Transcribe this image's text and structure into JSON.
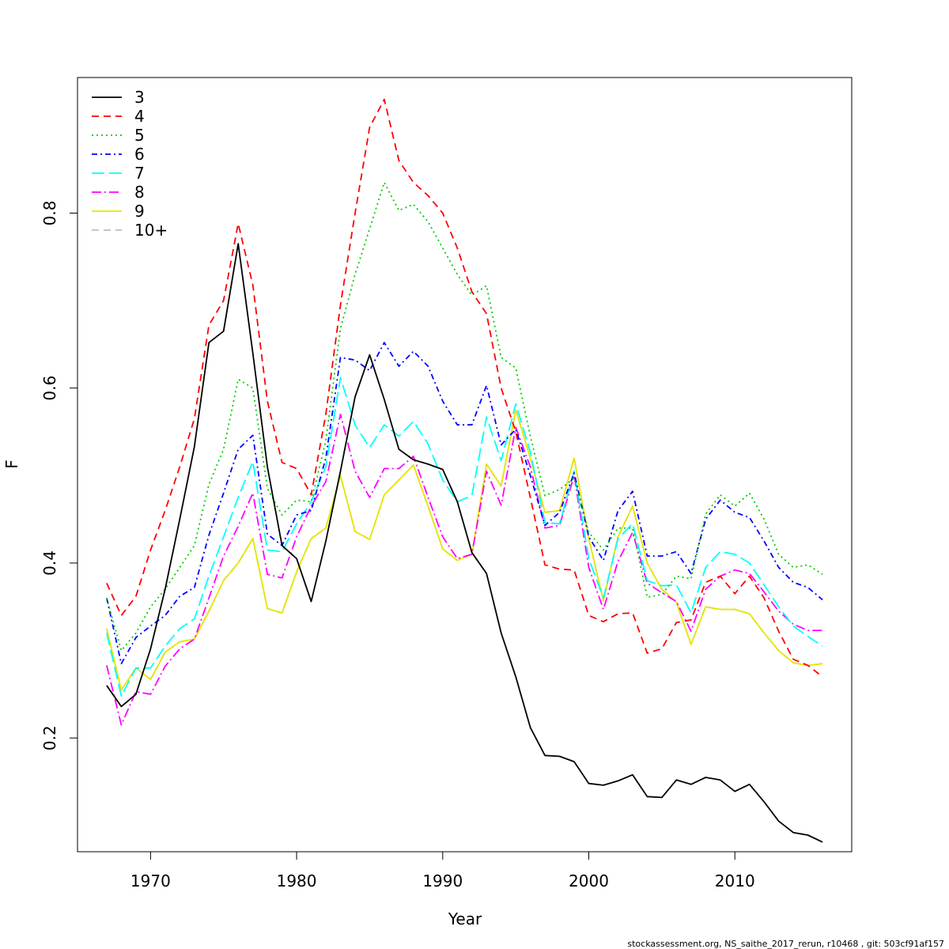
{
  "chart_data": {
    "type": "line",
    "xlabel": "Year",
    "ylabel": "F",
    "xlim": [
      1965,
      2018
    ],
    "ylim": [
      0.07,
      0.955
    ],
    "xticks": [
      1970,
      1980,
      1990,
      2000,
      2010
    ],
    "yticks": [
      0.2,
      0.4,
      0.6,
      0.8
    ],
    "xtick_labels": [
      "1970",
      "1980",
      "1990",
      "2000",
      "2010"
    ],
    "ytick_labels": [
      "0.2",
      "0.4",
      "0.6",
      "0.8"
    ],
    "legend_position": "top-left",
    "grid": false,
    "x": [
      1967,
      1968,
      1969,
      1970,
      1971,
      1972,
      1973,
      1974,
      1975,
      1976,
      1977,
      1978,
      1979,
      1980,
      1981,
      1982,
      1983,
      1984,
      1985,
      1986,
      1987,
      1988,
      1989,
      1990,
      1991,
      1992,
      1993,
      1994,
      1995,
      1996,
      1997,
      1998,
      1999,
      2000,
      2001,
      2002,
      2003,
      2004,
      2005,
      2006,
      2007,
      2008,
      2009,
      2010,
      2011,
      2012,
      2013,
      2014,
      2015,
      2016
    ],
    "series": [
      {
        "name": "3",
        "color": "#000000",
        "dash": "",
        "values": [
          0.26,
          0.236,
          0.25,
          0.302,
          0.37,
          0.45,
          0.533,
          0.652,
          0.665,
          0.765,
          0.64,
          0.51,
          0.42,
          0.405,
          0.356,
          0.425,
          0.505,
          0.59,
          0.638,
          0.587,
          0.53,
          0.518,
          0.513,
          0.507,
          0.47,
          0.412,
          0.388,
          0.32,
          0.27,
          0.212,
          0.18,
          0.179,
          0.173,
          0.148,
          0.146,
          0.151,
          0.158,
          0.133,
          0.132,
          0.152,
          0.147,
          0.155,
          0.152,
          0.139,
          0.147,
          0.127,
          0.105,
          0.092,
          0.089,
          0.081
        ]
      },
      {
        "name": "4",
        "color": "#ff0000",
        "dash": "9,6",
        "values": [
          0.377,
          0.34,
          0.362,
          0.415,
          0.46,
          0.51,
          0.565,
          0.672,
          0.7,
          0.788,
          0.718,
          0.585,
          0.515,
          0.508,
          0.478,
          0.57,
          0.695,
          0.8,
          0.898,
          0.93,
          0.86,
          0.835,
          0.82,
          0.8,
          0.76,
          0.71,
          0.685,
          0.6,
          0.55,
          0.475,
          0.398,
          0.393,
          0.392,
          0.34,
          0.333,
          0.342,
          0.343,
          0.297,
          0.302,
          0.332,
          0.335,
          0.378,
          0.385,
          0.365,
          0.385,
          0.36,
          0.322,
          0.29,
          0.283,
          0.27
        ]
      },
      {
        "name": "5",
        "color": "#00cd00",
        "dash": "2,4",
        "values": [
          0.36,
          0.3,
          0.32,
          0.35,
          0.37,
          0.395,
          0.42,
          0.49,
          0.53,
          0.61,
          0.6,
          0.485,
          0.455,
          0.472,
          0.47,
          0.54,
          0.668,
          0.73,
          0.782,
          0.835,
          0.803,
          0.81,
          0.79,
          0.76,
          0.73,
          0.706,
          0.717,
          0.635,
          0.623,
          0.545,
          0.477,
          0.484,
          0.497,
          0.435,
          0.415,
          0.44,
          0.44,
          0.361,
          0.364,
          0.385,
          0.382,
          0.456,
          0.478,
          0.465,
          0.48,
          0.45,
          0.41,
          0.395,
          0.398,
          0.387
        ]
      },
      {
        "name": "6",
        "color": "#0000ff",
        "dash": "7,4,2,4",
        "values": [
          0.36,
          0.285,
          0.315,
          0.328,
          0.34,
          0.362,
          0.372,
          0.432,
          0.48,
          0.53,
          0.546,
          0.433,
          0.42,
          0.455,
          0.46,
          0.52,
          0.635,
          0.632,
          0.62,
          0.652,
          0.625,
          0.642,
          0.625,
          0.585,
          0.558,
          0.558,
          0.603,
          0.535,
          0.553,
          0.5,
          0.443,
          0.458,
          0.503,
          0.43,
          0.403,
          0.46,
          0.482,
          0.408,
          0.408,
          0.413,
          0.388,
          0.45,
          0.472,
          0.458,
          0.452,
          0.425,
          0.395,
          0.378,
          0.372,
          0.358
        ]
      },
      {
        "name": "7",
        "color": "#00ffff",
        "dash": "16,6",
        "values": [
          0.32,
          0.248,
          0.28,
          0.28,
          0.305,
          0.325,
          0.336,
          0.385,
          0.43,
          0.475,
          0.516,
          0.415,
          0.413,
          0.445,
          0.47,
          0.51,
          0.612,
          0.558,
          0.532,
          0.558,
          0.545,
          0.562,
          0.536,
          0.495,
          0.47,
          0.477,
          0.567,
          0.517,
          0.582,
          0.527,
          0.446,
          0.445,
          0.505,
          0.405,
          0.36,
          0.428,
          0.445,
          0.38,
          0.374,
          0.375,
          0.343,
          0.395,
          0.413,
          0.41,
          0.4,
          0.375,
          0.35,
          0.328,
          0.316,
          0.305
        ]
      },
      {
        "name": "8",
        "color": "#ff00ff",
        "dash": "12,4,2,4",
        "values": [
          0.283,
          0.215,
          0.253,
          0.25,
          0.282,
          0.302,
          0.313,
          0.36,
          0.408,
          0.442,
          0.48,
          0.387,
          0.383,
          0.43,
          0.465,
          0.493,
          0.57,
          0.505,
          0.475,
          0.508,
          0.508,
          0.522,
          0.475,
          0.43,
          0.405,
          0.41,
          0.505,
          0.466,
          0.555,
          0.51,
          0.44,
          0.443,
          0.5,
          0.395,
          0.347,
          0.402,
          0.435,
          0.377,
          0.366,
          0.356,
          0.322,
          0.37,
          0.385,
          0.392,
          0.388,
          0.367,
          0.345,
          0.33,
          0.323,
          0.323
        ]
      },
      {
        "name": "9",
        "color": "#e6e600",
        "dash": "",
        "values": [
          0.325,
          0.255,
          0.28,
          0.267,
          0.298,
          0.31,
          0.313,
          0.345,
          0.38,
          0.4,
          0.428,
          0.348,
          0.343,
          0.39,
          0.428,
          0.44,
          0.5,
          0.436,
          0.427,
          0.478,
          0.495,
          0.512,
          0.465,
          0.416,
          0.403,
          0.41,
          0.513,
          0.488,
          0.575,
          0.52,
          0.458,
          0.46,
          0.52,
          0.428,
          0.357,
          0.43,
          0.465,
          0.4,
          0.37,
          0.355,
          0.307,
          0.35,
          0.347,
          0.347,
          0.342,
          0.32,
          0.3,
          0.286,
          0.283,
          0.285
        ]
      },
      {
        "name": "10+",
        "color": "#bebebe",
        "dash": "9,6",
        "values": [
          0.325,
          0.255,
          0.28,
          0.267,
          0.298,
          0.31,
          0.313,
          0.345,
          0.38,
          0.4,
          0.428,
          0.348,
          0.343,
          0.39,
          0.428,
          0.44,
          0.5,
          0.436,
          0.427,
          0.478,
          0.495,
          0.512,
          0.465,
          0.416,
          0.403,
          0.41,
          0.513,
          0.488,
          0.575,
          0.52,
          0.458,
          0.46,
          0.52,
          0.428,
          0.357,
          0.43,
          0.465,
          0.4,
          0.37,
          0.355,
          0.307,
          0.35,
          0.347,
          0.347,
          0.342,
          0.32,
          0.3,
          0.286,
          0.283,
          0.285
        ]
      }
    ]
  },
  "footer": "stockassessment.org, NS_saithe_2017_rerun, r10468 , git: 503cf91af157"
}
